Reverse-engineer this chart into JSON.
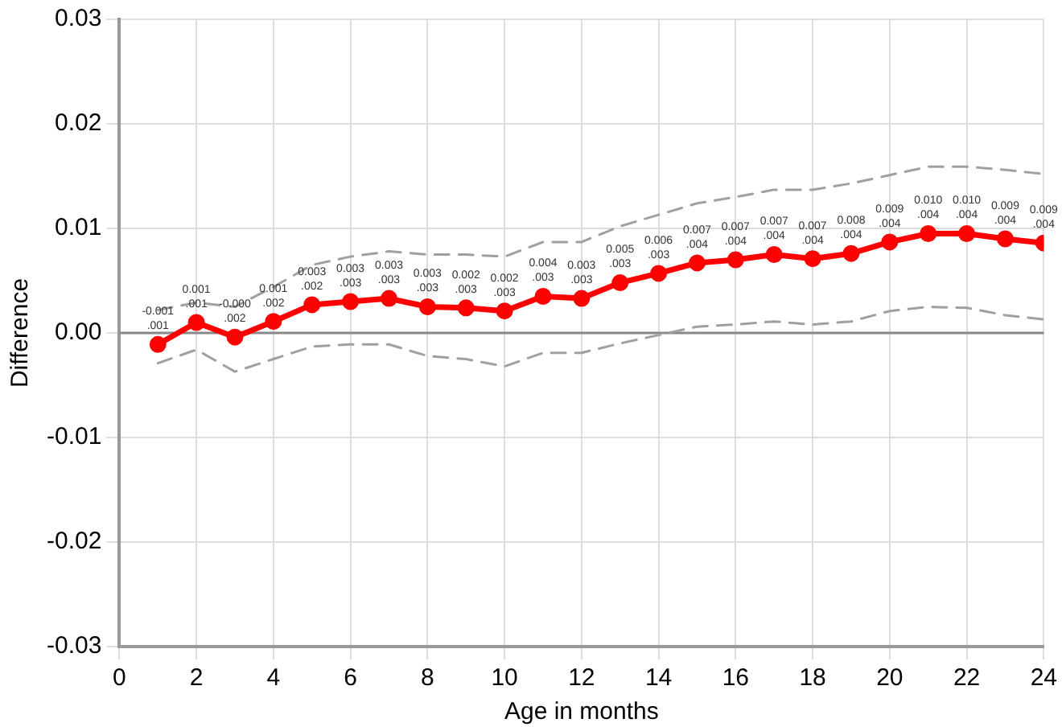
{
  "chart_data": {
    "type": "line",
    "xlabel": "Age in months",
    "ylabel": "Difference",
    "x": [
      1,
      2,
      3,
      4,
      5,
      6,
      7,
      8,
      9,
      10,
      11,
      12,
      13,
      14,
      15,
      16,
      17,
      18,
      19,
      20,
      21,
      22,
      23,
      24
    ],
    "series": [
      {
        "color": "#ff0000",
        "marker": "circle",
        "line_style": "solid",
        "values": [
          -0.0011,
          0.001,
          -0.0004,
          0.0011,
          0.0027,
          0.003,
          0.0033,
          0.0025,
          0.0024,
          0.0021,
          0.0035,
          0.0033,
          0.0048,
          0.0057,
          0.0067,
          0.007,
          0.0075,
          0.0071,
          0.0076,
          0.0087,
          0.0095,
          0.0095,
          0.009,
          0.0086
        ],
        "value_labels": [
          "-0.001\n.001",
          "0.001\n.001",
          "-0.000\n.002",
          "0.001\n.002",
          "0.003\n.002",
          "0.003\n.003",
          "0.003\n.003",
          "0.003\n.003",
          "0.002\n.003",
          "0.002\n.003",
          "0.004\n.003",
          "0.003\n.003",
          "0.005\n.003",
          "0.006\n.003",
          "0.007\n.004",
          "0.007\n.004",
          "0.007\n.004",
          "0.007\n.004",
          "0.008\n.004",
          "0.009\n.004",
          "0.010\n.004",
          "0.010\n.004",
          "0.009\n.004",
          "0.009\n.004"
        ]
      },
      {
        "color": "#a0a0a0",
        "marker": "none",
        "line_style": "dashed",
        "values": [
          0.0022,
          0.0029,
          0.0025,
          0.0044,
          0.0065,
          0.0073,
          0.0078,
          0.0075,
          0.0075,
          0.0073,
          0.0087,
          0.0087,
          0.0102,
          0.0113,
          0.0124,
          0.013,
          0.0137,
          0.0137,
          0.0143,
          0.0151,
          0.0159,
          0.0159,
          0.0156,
          0.0152
        ]
      },
      {
        "color": "#a0a0a0",
        "marker": "none",
        "line_style": "dashed",
        "values": [
          -0.0029,
          -0.0016,
          -0.0037,
          -0.0025,
          -0.0013,
          -0.0011,
          -0.0011,
          -0.0022,
          -0.0025,
          -0.0032,
          -0.0019,
          -0.0019,
          -0.001,
          -0.0002,
          0.0006,
          0.0008,
          0.0011,
          0.0008,
          0.0011,
          0.0021,
          0.0025,
          0.0024,
          0.0017,
          0.0013
        ]
      }
    ],
    "xlim": [
      0,
      24
    ],
    "xticks": [
      0,
      2,
      4,
      6,
      8,
      10,
      12,
      14,
      16,
      18,
      20,
      22,
      24
    ],
    "ylim": [
      -0.03,
      0.03
    ],
    "yticks": [
      -0.03,
      -0.02,
      -0.01,
      {
        "value": 0,
        "label": "0.00"
      },
      0.01,
      0.02,
      0.03
    ],
    "ref_lines": [
      {
        "axis": "y",
        "value": 0,
        "color": "#888888"
      }
    ],
    "grid": true,
    "legend": false
  }
}
